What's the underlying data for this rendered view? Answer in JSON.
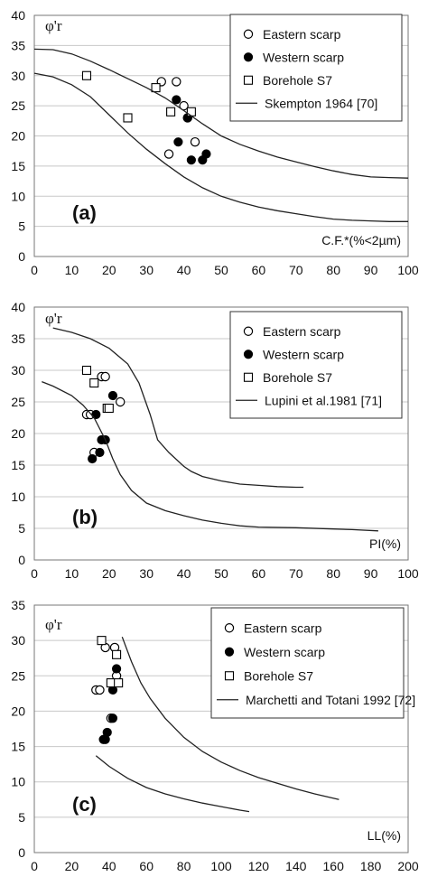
{
  "chart_data": [
    {
      "type": "scatter",
      "panel_label": "(a)",
      "ylabel": "φ'r",
      "xlabel": "C.F.*(%<2µm)",
      "xlim": [
        0,
        100
      ],
      "ylim": [
        0,
        40
      ],
      "xticks": [
        "0",
        "10",
        "20",
        "30",
        "40",
        "50",
        "60",
        "70",
        "80",
        "90",
        "100"
      ],
      "yticks": [
        "0",
        "5",
        "10",
        "15",
        "20",
        "25",
        "30",
        "35",
        "40"
      ],
      "grid": "horizontal",
      "legend_position": "top-right",
      "series": [
        {
          "name": "Eastern scarp",
          "marker": "open-circle",
          "points": [
            [
              34,
              29
            ],
            [
              38,
              29
            ],
            [
              40,
              25
            ],
            [
              41,
              23
            ],
            [
              36,
              17
            ],
            [
              43,
              19
            ]
          ]
        },
        {
          "name": "Western scarp",
          "marker": "filled-circle",
          "points": [
            [
              38,
              26
            ],
            [
              41,
              23
            ],
            [
              38.5,
              19
            ],
            [
              42,
              16
            ],
            [
              45,
              16
            ],
            [
              46,
              17
            ]
          ]
        },
        {
          "name": "Borehole S7",
          "marker": "open-square",
          "points": [
            [
              14,
              30
            ],
            [
              25,
              23
            ],
            [
              32.5,
              28
            ],
            [
              36.5,
              24
            ],
            [
              42,
              24
            ]
          ]
        },
        {
          "name": "Skempton 1964 [70]",
          "marker": "line",
          "curves": [
            [
              [
                0,
                34.4
              ],
              [
                5,
                34.3
              ],
              [
                10,
                33.6
              ],
              [
                15,
                32.4
              ],
              [
                20,
                31
              ],
              [
                25,
                29.5
              ],
              [
                30,
                28
              ],
              [
                35,
                26.3
              ],
              [
                40,
                24.2
              ],
              [
                45,
                22
              ],
              [
                50,
                20
              ],
              [
                55,
                18.6
              ],
              [
                60,
                17.5
              ],
              [
                65,
                16.5
              ],
              [
                70,
                15.7
              ],
              [
                75,
                14.9
              ],
              [
                80,
                14.2
              ],
              [
                85,
                13.6
              ],
              [
                90,
                13.2
              ],
              [
                95,
                13.1
              ],
              [
                100,
                13
              ]
            ],
            [
              [
                0,
                30.4
              ],
              [
                5,
                29.8
              ],
              [
                10,
                28.5
              ],
              [
                15,
                26.5
              ],
              [
                20,
                23.5
              ],
              [
                25,
                20.5
              ],
              [
                30,
                17.8
              ],
              [
                35,
                15.4
              ],
              [
                40,
                13.2
              ],
              [
                45,
                11.4
              ],
              [
                50,
                10
              ],
              [
                55,
                9
              ],
              [
                60,
                8.2
              ],
              [
                65,
                7.6
              ],
              [
                70,
                7.1
              ],
              [
                75,
                6.6
              ],
              [
                80,
                6.2
              ],
              [
                85,
                6
              ],
              [
                90,
                5.9
              ],
              [
                95,
                5.8
              ],
              [
                100,
                5.8
              ]
            ]
          ]
        }
      ]
    },
    {
      "type": "scatter",
      "panel_label": "(b)",
      "ylabel": "φ'r",
      "xlabel": "PI(%)",
      "xlim": [
        0,
        100
      ],
      "ylim": [
        0,
        40
      ],
      "xticks": [
        "0",
        "10",
        "20",
        "30",
        "40",
        "50",
        "60",
        "70",
        "80",
        "90",
        "100"
      ],
      "yticks": [
        "0",
        "5",
        "10",
        "15",
        "20",
        "25",
        "30",
        "35",
        "40"
      ],
      "grid": "horizontal",
      "legend_position": "top-right",
      "series": [
        {
          "name": "Eastern scarp",
          "marker": "open-circle",
          "points": [
            [
              14,
              23
            ],
            [
              15,
              23
            ],
            [
              16,
              17
            ],
            [
              18,
              29
            ],
            [
              19,
              29
            ],
            [
              23,
              25
            ]
          ]
        },
        {
          "name": "Western scarp",
          "marker": "filled-circle",
          "points": [
            [
              16.5,
              23
            ],
            [
              21,
              26
            ],
            [
              18,
              19
            ],
            [
              19,
              19
            ],
            [
              17.5,
              17
            ],
            [
              15.5,
              16
            ]
          ]
        },
        {
          "name": "Borehole S7",
          "marker": "open-square",
          "points": [
            [
              14,
              30
            ],
            [
              16,
              28
            ],
            [
              19.5,
              24
            ],
            [
              20,
              24
            ]
          ]
        },
        {
          "name": "Lupini et al.1981 [71]",
          "marker": "line",
          "curves": [
            [
              [
                5,
                36.7
              ],
              [
                10,
                36
              ],
              [
                15,
                35
              ],
              [
                20,
                33.5
              ],
              [
                25,
                31
              ],
              [
                28,
                28
              ],
              [
                31,
                23
              ],
              [
                33,
                19
              ],
              [
                36,
                17
              ],
              [
                40,
                14.8
              ],
              [
                42,
                14
              ],
              [
                45,
                13.2
              ],
              [
                50,
                12.5
              ],
              [
                55,
                12
              ],
              [
                60,
                11.8
              ],
              [
                65,
                11.6
              ],
              [
                70,
                11.5
              ],
              [
                72,
                11.5
              ]
            ],
            [
              [
                2,
                28.2
              ],
              [
                5,
                27.5
              ],
              [
                10,
                26
              ],
              [
                13,
                24.5
              ],
              [
                16,
                22.5
              ],
              [
                19,
                19
              ],
              [
                21,
                16
              ],
              [
                23,
                13.5
              ],
              [
                26,
                11
              ],
              [
                30,
                9
              ],
              [
                35,
                7.8
              ],
              [
                40,
                7
              ],
              [
                45,
                6.3
              ],
              [
                50,
                5.8
              ],
              [
                55,
                5.4
              ],
              [
                60,
                5.2
              ],
              [
                70,
                5.1
              ],
              [
                80,
                4.9
              ],
              [
                85,
                4.8
              ],
              [
                92,
                4.6
              ]
            ]
          ]
        }
      ]
    },
    {
      "type": "scatter",
      "panel_label": "(c)",
      "ylabel": "φ'r",
      "xlabel": "LL(%)",
      "xlim": [
        0,
        200
      ],
      "ylim": [
        0,
        35
      ],
      "xticks": [
        "0",
        "20",
        "40",
        "60",
        "80",
        "100",
        "120",
        "140",
        "160",
        "180",
        "200"
      ],
      "yticks": [
        "0",
        "5",
        "10",
        "15",
        "20",
        "25",
        "30",
        "35"
      ],
      "grid": "horizontal",
      "legend_position": "top-right",
      "series": [
        {
          "name": "Eastern scarp",
          "marker": "open-circle",
          "points": [
            [
              33,
              23
            ],
            [
              38,
              29
            ],
            [
              43,
              29
            ],
            [
              41,
              19
            ],
            [
              44,
              25
            ],
            [
              35,
              23
            ]
          ]
        },
        {
          "name": "Western scarp",
          "marker": "filled-circle",
          "points": [
            [
              42,
              23
            ],
            [
              44,
              26
            ],
            [
              42,
              19
            ],
            [
              38,
              16
            ],
            [
              39,
              17
            ],
            [
              37,
              16
            ]
          ]
        },
        {
          "name": "Borehole S7",
          "marker": "open-square",
          "points": [
            [
              36,
              30
            ],
            [
              44,
              28
            ],
            [
              41,
              24
            ],
            [
              45,
              24
            ]
          ]
        },
        {
          "name": "Marchetti and Totani 1992 [72]",
          "marker": "line",
          "curves": [
            [
              [
                47,
                30.5
              ],
              [
                52,
                27
              ],
              [
                57,
                24
              ],
              [
                62,
                21.8
              ],
              [
                70,
                19
              ],
              [
                80,
                16.3
              ],
              [
                90,
                14.3
              ],
              [
                100,
                12.8
              ],
              [
                110,
                11.6
              ],
              [
                120,
                10.6
              ],
              [
                130,
                9.8
              ],
              [
                140,
                9
              ],
              [
                150,
                8.3
              ],
              [
                163,
                7.5
              ]
            ],
            [
              [
                33,
                13.7
              ],
              [
                40,
                12.2
              ],
              [
                50,
                10.5
              ],
              [
                60,
                9.2
              ],
              [
                70,
                8.3
              ],
              [
                80,
                7.6
              ],
              [
                90,
                7
              ],
              [
                100,
                6.5
              ],
              [
                110,
                6
              ],
              [
                115,
                5.8
              ]
            ]
          ]
        }
      ]
    }
  ]
}
